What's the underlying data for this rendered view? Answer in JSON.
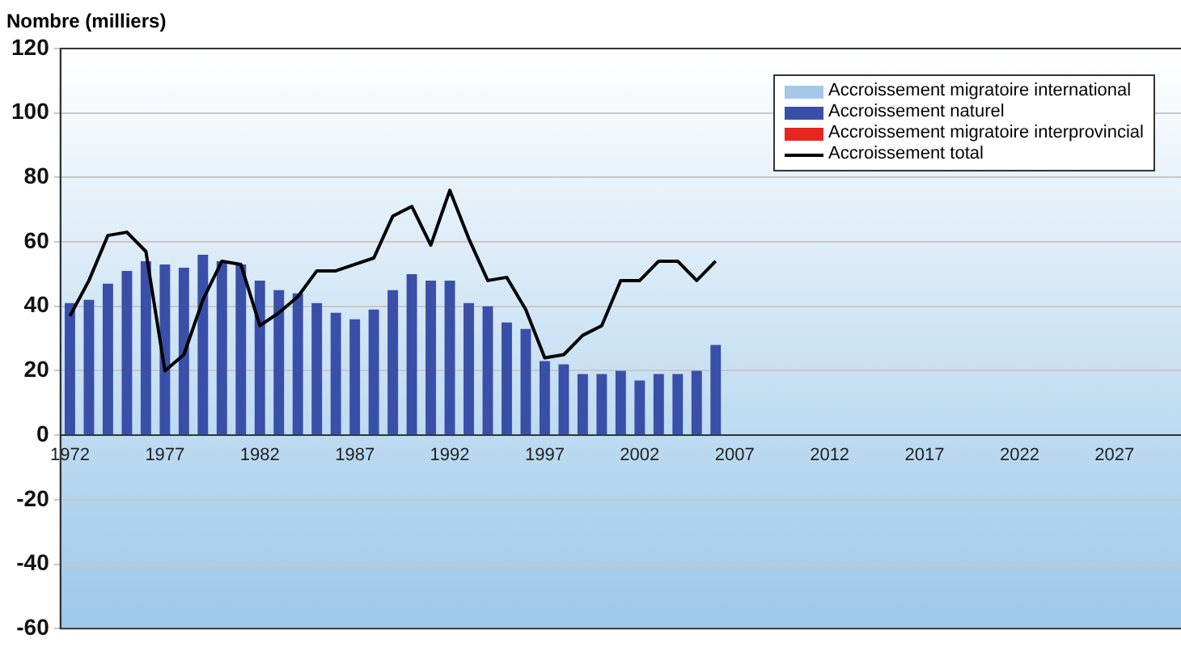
{
  "chart_data": {
    "type": "bar",
    "ylabel": "Nombre (milliers)",
    "categories": [
      "1972",
      null,
      null,
      null,
      null,
      "1977",
      null,
      null,
      null,
      null,
      "1982",
      null,
      null,
      null,
      null,
      "1987",
      null,
      null,
      null,
      null,
      "1992",
      null,
      null,
      null,
      null,
      "1997",
      null,
      null,
      null,
      null,
      "2002",
      null,
      null,
      null,
      null,
      "2007",
      null,
      null,
      null,
      null,
      "2012",
      null,
      null,
      null,
      null,
      "2017",
      null,
      null,
      null,
      null,
      "2022",
      null,
      null,
      null,
      null,
      "2027",
      null,
      null,
      null
    ],
    "series": [
      {
        "name": "Accroissement migratoire international",
        "color": "#a6c8e8",
        "values": [
          null,
          null,
          null,
          null,
          null,
          null,
          null,
          null,
          null,
          null,
          null,
          null,
          null,
          null,
          null,
          null,
          null,
          null,
          null,
          null,
          null,
          null,
          null,
          null,
          null,
          null,
          null,
          null,
          null,
          null,
          null,
          null,
          null,
          null,
          null,
          null,
          null,
          null,
          null,
          null,
          null,
          null,
          null,
          null,
          null,
          null,
          null,
          null,
          null,
          null,
          null,
          null,
          null,
          null,
          null,
          null,
          null,
          null,
          null
        ]
      },
      {
        "name": "Accroissement naturel",
        "color": "#3a4fa8",
        "values": [
          41,
          42,
          47,
          51,
          54,
          53,
          52,
          56,
          54,
          53,
          48,
          45,
          44,
          41,
          38,
          36,
          39,
          45,
          50,
          48,
          48,
          41,
          40,
          35,
          33,
          23,
          22,
          19,
          19,
          20,
          17,
          19,
          19,
          20,
          28,
          null,
          null,
          null,
          null,
          null,
          null,
          null,
          null,
          null,
          null,
          null,
          null,
          null,
          null,
          null,
          null,
          null,
          null,
          null,
          null,
          null,
          null,
          null,
          null
        ]
      },
      {
        "name": "Accroissement migratoire interprovincial",
        "color": "#e8251f",
        "values": [
          null,
          null,
          null,
          null,
          null,
          null,
          null,
          null,
          null,
          null,
          null,
          null,
          null,
          null,
          null,
          null,
          null,
          null,
          null,
          null,
          null,
          null,
          null,
          null,
          null,
          null,
          null,
          null,
          null,
          null,
          null,
          null,
          null,
          null,
          null,
          null,
          null,
          null,
          null,
          null,
          null,
          null,
          null,
          null,
          null,
          null,
          null,
          null,
          null,
          null,
          null,
          null,
          null,
          null,
          null,
          null,
          null,
          null,
          null
        ]
      },
      {
        "name": "Accroissement total",
        "type": "line",
        "color": "#000000",
        "values": [
          37,
          48,
          62,
          63,
          57,
          20,
          25,
          42,
          54,
          53,
          34,
          38,
          43,
          51,
          51,
          53,
          55,
          68,
          71,
          59,
          76,
          61,
          48,
          49,
          39,
          24,
          25,
          31,
          34,
          48,
          48,
          54,
          54,
          48,
          54,
          null,
          null,
          null,
          null,
          null,
          null,
          null,
          null,
          null,
          null,
          null,
          null,
          null,
          null,
          null,
          null,
          null,
          null,
          null,
          null,
          null,
          null,
          null,
          null
        ]
      }
    ],
    "stacked": true,
    "ylim": [
      -60,
      120
    ],
    "yticks": [
      -60,
      -40,
      -20,
      0,
      20,
      40,
      60,
      80,
      100,
      120
    ],
    "grid": "y",
    "legend": "top right",
    "marker": "none"
  }
}
